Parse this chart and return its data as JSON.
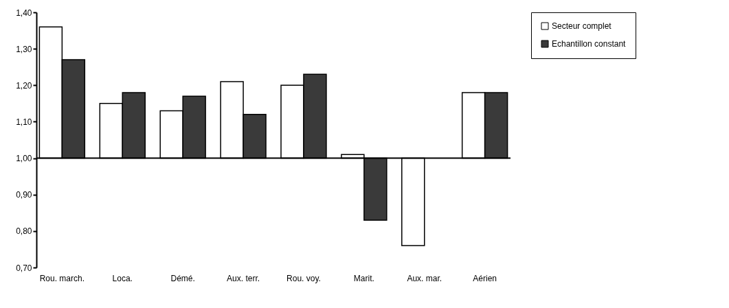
{
  "chart_data": {
    "type": "bar",
    "categories": [
      "Rou. march.",
      "Loca.",
      "Démé.",
      "Aux. terr.",
      "Rou. voy.",
      "Marit.",
      "Aux. mar.",
      "Aérien"
    ],
    "series": [
      {
        "name": "Secteur complet",
        "color": "#ffffff",
        "base": [
          1.0,
          1.0,
          1.0,
          1.0,
          1.0,
          1.0,
          1.0,
          1.0
        ],
        "values": [
          0.36,
          0.15,
          0.13,
          0.21,
          0.2,
          0.01,
          -0.24,
          0.18
        ]
      },
      {
        "name": "Echantillon constant",
        "color": "#3a3a3a",
        "base": [
          1.0,
          1.0,
          1.0,
          1.0,
          1.0,
          1.0,
          null,
          1.0
        ],
        "values": [
          0.27,
          0.18,
          0.17,
          0.12,
          0.23,
          -0.17,
          null,
          0.18
        ]
      }
    ],
    "ref_lines": [
      {
        "axis": "y",
        "value": 1.0
      }
    ],
    "ylim": [
      0.7,
      1.4
    ],
    "yticks": [
      {
        "value": 0.7,
        "label": "0,70"
      },
      {
        "value": 0.8,
        "label": "0,80"
      },
      {
        "value": 0.9,
        "label": "0,90"
      },
      {
        "value": 1.0,
        "label": "1,00"
      },
      {
        "value": 1.1,
        "label": "1,10"
      },
      {
        "value": 1.2,
        "label": "1,20"
      },
      {
        "value": 1.3,
        "label": "1,30"
      },
      {
        "value": 1.4,
        "label": "1,40"
      }
    ],
    "legend": "right"
  }
}
